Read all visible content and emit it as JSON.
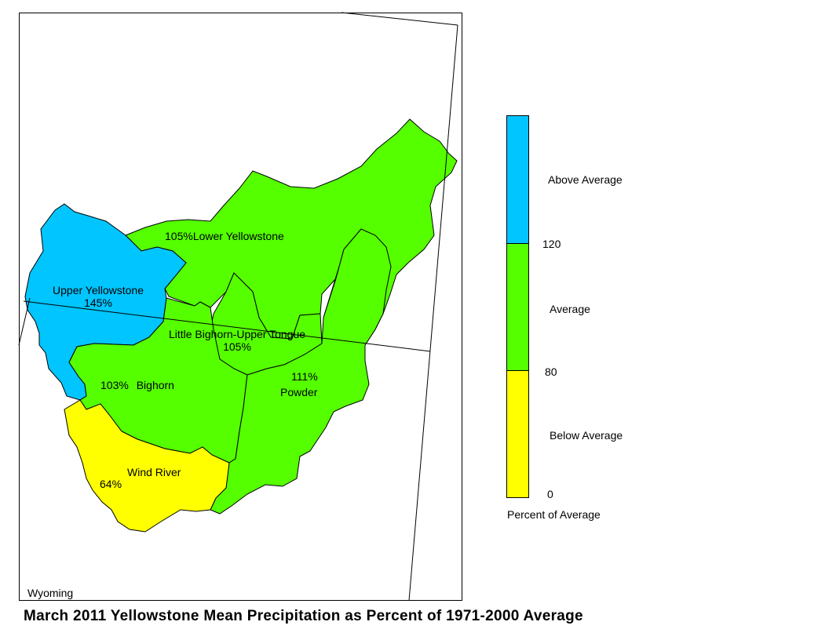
{
  "title": "March 2011 Yellowstone Mean Precipitation as Percent of 1971-2000 Average",
  "state_label": "Wyoming",
  "colors": {
    "above_average": "#00c5ff",
    "average": "#55ff00",
    "below_average": "#ffff00",
    "border": "#000000"
  },
  "basins": [
    {
      "id": "upper-yellowstone",
      "name": "Upper Yellowstone",
      "percent": "145%",
      "category": "above_average"
    },
    {
      "id": "lower-yellowstone",
      "name": "Lower Yellowstone",
      "percent": "105%",
      "category": "average"
    },
    {
      "id": "little-bighorn-upper-tongue",
      "name": "Little Bighorn-Upper Tongue",
      "percent": "105%",
      "category": "average"
    },
    {
      "id": "bighorn",
      "name": "Bighorn",
      "percent": "103%",
      "category": "average"
    },
    {
      "id": "powder",
      "name": "Powder",
      "percent": "111%",
      "category": "average"
    },
    {
      "id": "wind-river",
      "name": "Wind River",
      "percent": "64%",
      "category": "below_average"
    }
  ],
  "legend": {
    "title": "Percent of Average",
    "categories": [
      {
        "label": "Above Average",
        "color": "#00c5ff"
      },
      {
        "label": "Average",
        "color": "#55ff00"
      },
      {
        "label": "Below Average",
        "color": "#ffff00"
      }
    ],
    "breaks": [
      "120",
      "80",
      "0"
    ]
  }
}
